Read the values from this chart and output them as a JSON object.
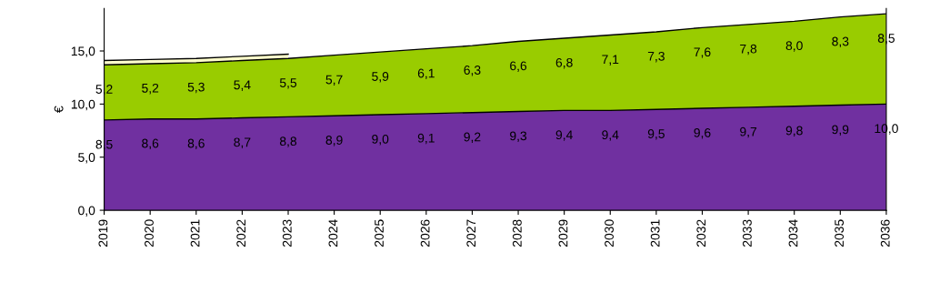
{
  "chart_data": {
    "type": "area",
    "stacked": true,
    "ylabel": "€",
    "grid": false,
    "legend": false,
    "categories": [
      "2019",
      "2020",
      "2021",
      "2022",
      "2023",
      "2024",
      "2025",
      "2026",
      "2027",
      "2028",
      "2029",
      "2030",
      "2031",
      "2032",
      "2033",
      "2034",
      "2035",
      "2036"
    ],
    "ylim": [
      0,
      19
    ],
    "yticks": [
      {
        "value": 0,
        "label": "0,0"
      },
      {
        "value": 5,
        "label": "5,0"
      },
      {
        "value": 10,
        "label": "10,0"
      },
      {
        "value": 15,
        "label": "15,0"
      }
    ],
    "series": [
      {
        "color": "#7030a0",
        "values": [
          8.5,
          8.6,
          8.6,
          8.7,
          8.8,
          8.9,
          9.0,
          9.1,
          9.2,
          9.3,
          9.4,
          9.4,
          9.5,
          9.6,
          9.7,
          9.8,
          9.9,
          10.0
        ],
        "value_labels": [
          "8,5",
          "8,6",
          "8,6",
          "8,7",
          "8,8",
          "8,9",
          "9,0",
          "9,1",
          "9,2",
          "9,3",
          "9,4",
          "9,4",
          "9,5",
          "9,6",
          "9,7",
          "9,8",
          "9,9",
          "10,0"
        ]
      },
      {
        "color": "#99cc00",
        "values": [
          5.2,
          5.2,
          5.3,
          5.4,
          5.5,
          5.7,
          5.9,
          6.1,
          6.3,
          6.6,
          6.8,
          7.1,
          7.3,
          7.6,
          7.8,
          8.0,
          8.3,
          8.5
        ],
        "value_labels": [
          "5,2",
          "5,2",
          "5,3",
          "5,4",
          "5,5",
          "5,7",
          "5,9",
          "6,1",
          "6,3",
          "6,6",
          "6,8",
          "7,1",
          "7,3",
          "7,6",
          "7,8",
          "8,0",
          "8,3",
          "8,5"
        ]
      },
      {
        "color": "#ffffcc",
        "values": [
          0.4,
          0.4,
          0.4,
          0.4,
          0.4,
          null,
          null,
          null,
          null,
          null,
          null,
          null,
          null,
          null,
          null,
          null,
          null,
          null
        ]
      }
    ]
  }
}
